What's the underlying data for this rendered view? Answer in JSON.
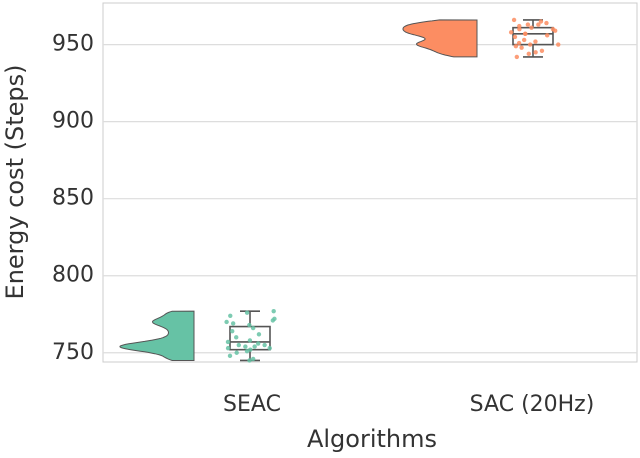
{
  "chart_data": {
    "type": "raincloud",
    "x_label": "Algorithms",
    "y_label": "Energy cost (Steps)",
    "categories": [
      "SEAC",
      "SAC (20Hz)"
    ],
    "series": [
      {
        "name": "SEAC",
        "color": "#66c2a5",
        "min": 745,
        "q1": 752,
        "median": 757,
        "q3": 767,
        "max": 777,
        "points": [
          745,
          746,
          748,
          750,
          751,
          752,
          753,
          753,
          754,
          754,
          755,
          755,
          756,
          757,
          758,
          760,
          762,
          764,
          766,
          768,
          769,
          770,
          771,
          772,
          774,
          776,
          777
        ]
      },
      {
        "name": "SAC (20Hz)",
        "color": "#fc8d62",
        "min": 942,
        "q1": 950,
        "median": 957,
        "q3": 961,
        "max": 966,
        "points": [
          942,
          944,
          945,
          946,
          948,
          949,
          950,
          950,
          951,
          952,
          953,
          955,
          956,
          957,
          957,
          958,
          959,
          960,
          960,
          961,
          962,
          963,
          963,
          964,
          965,
          966
        ]
      }
    ],
    "ylim": [
      744,
      977
    ],
    "yticks": [
      750,
      800,
      850,
      900,
      950
    ],
    "grid": true
  }
}
